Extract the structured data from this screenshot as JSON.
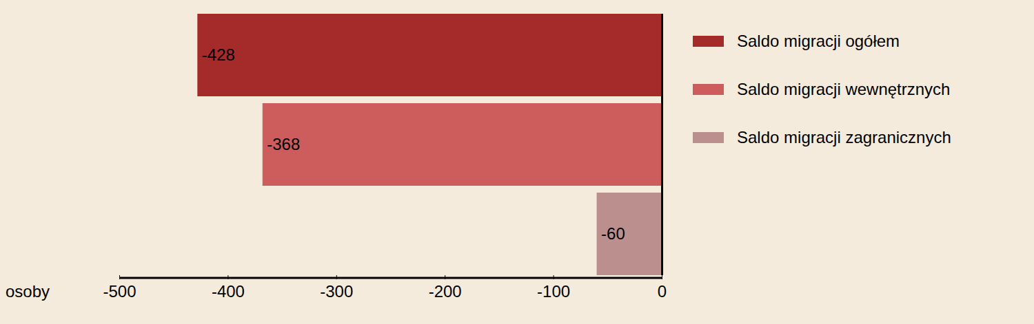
{
  "chart_data": {
    "type": "bar",
    "orientation": "horizontal",
    "categories": [
      "Saldo migracji ogółem",
      "Saldo migracji wewnętrznych",
      "Saldo migracji zagranicznych"
    ],
    "values": [
      -428,
      -368,
      -60
    ],
    "colors": [
      "#a52a2a",
      "#cd5c5c",
      "#bc8f8f"
    ],
    "xlabel": "osoby",
    "xlim": [
      -500,
      0
    ],
    "xticks": [
      -500,
      -400,
      -300,
      -200,
      -100,
      0
    ],
    "data_labels": true,
    "legend": "right",
    "tick_labels": "x",
    "grid": false
  }
}
